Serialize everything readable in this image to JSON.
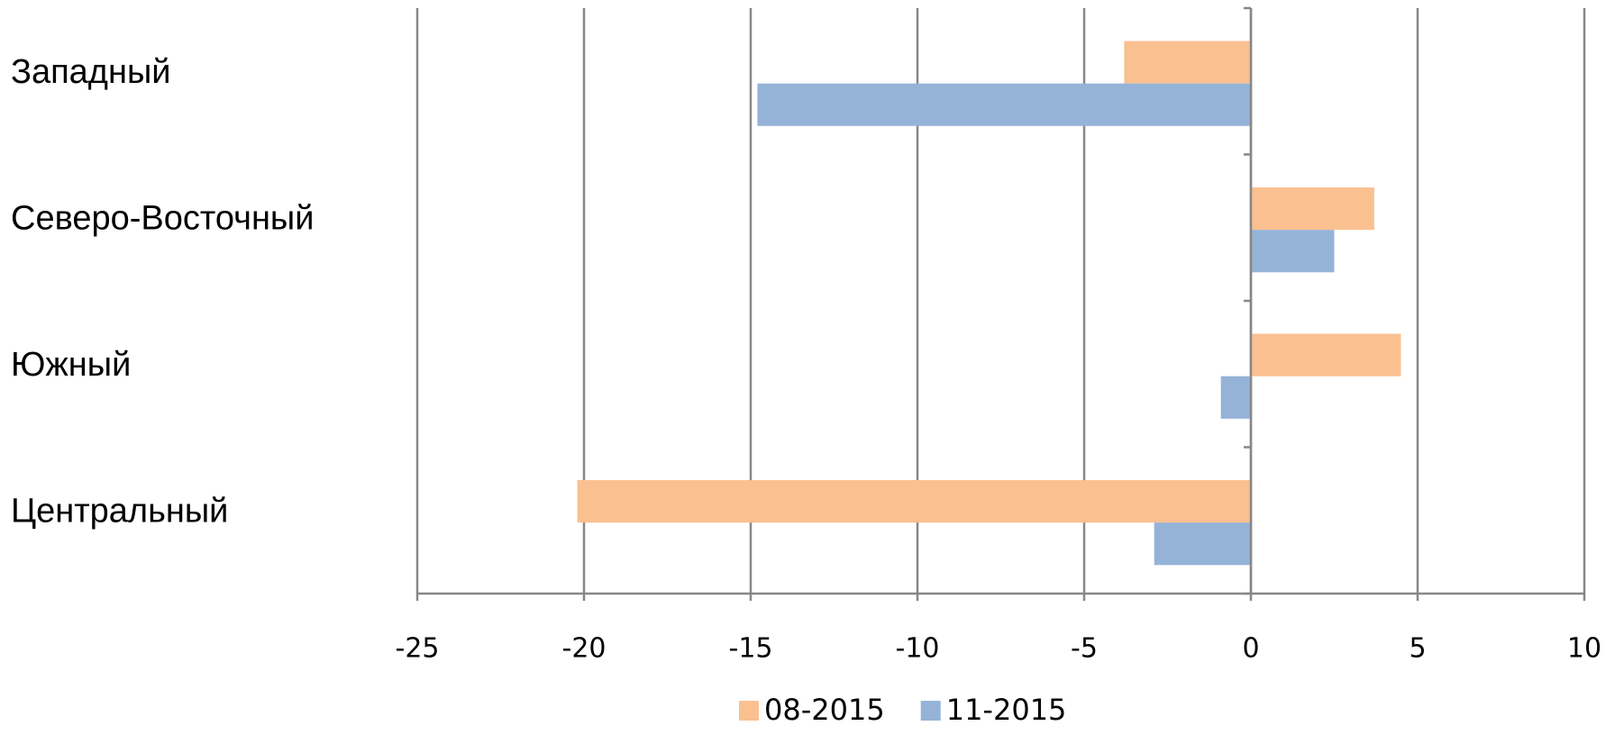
{
  "chart_data": {
    "type": "barh",
    "categories": [
      "Западный",
      "Северо-Восточный",
      "Южный",
      "Центральный"
    ],
    "series": [
      {
        "name": "08-2015",
        "color": "#fac090",
        "values": [
          -3.8,
          3.7,
          4.5,
          -20.2
        ]
      },
      {
        "name": "11-2015",
        "color": "#95b3d7",
        "values": [
          -14.8,
          2.5,
          -0.9,
          -2.9
        ]
      }
    ],
    "xlim": [
      -25,
      10
    ],
    "xticks": [
      -25,
      -20,
      -15,
      -10,
      -5,
      0,
      5,
      10
    ],
    "grid": true,
    "legend": "bottom"
  }
}
